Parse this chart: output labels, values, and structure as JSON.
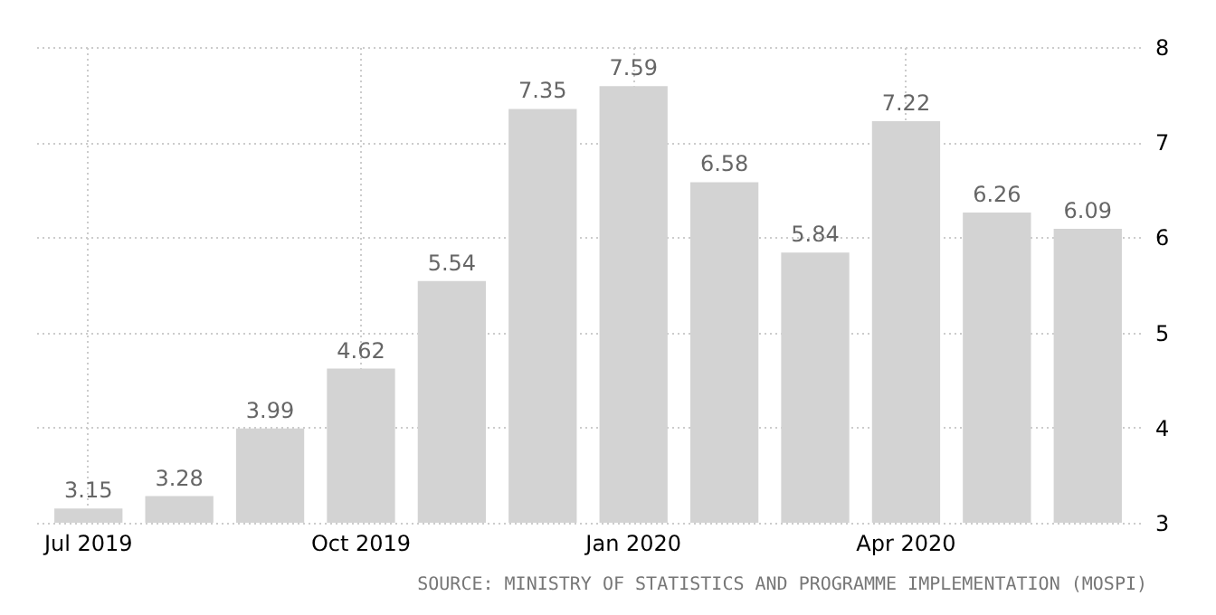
{
  "chart_data": {
    "type": "bar",
    "categories": [
      "Jul 2019",
      null,
      null,
      "Oct 2019",
      null,
      null,
      "Jan 2020",
      null,
      null,
      "Apr 2020",
      null,
      null
    ],
    "values": [
      3.15,
      3.28,
      3.99,
      4.62,
      5.54,
      7.35,
      7.59,
      6.58,
      5.84,
      7.22,
      6.26,
      6.09
    ],
    "color": "#d3d3d3",
    "ylim": [
      3,
      8
    ],
    "yticks": [
      3,
      4,
      5,
      6,
      7,
      8
    ],
    "grid": true,
    "data_labels": true,
    "annotations": [
      "SOURCE: MINISTRY OF STATISTICS AND PROGRAMME IMPLEMENTATION (MOSPI)"
    ]
  }
}
